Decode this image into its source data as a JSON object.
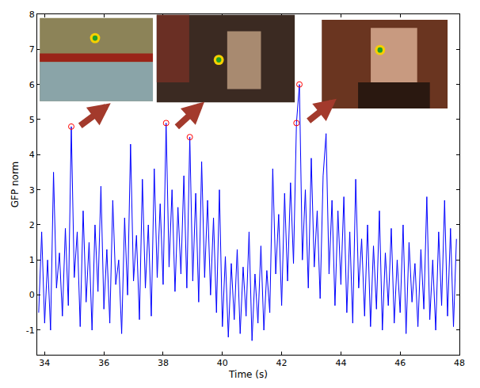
{
  "chart_data": {
    "type": "line",
    "x_label": "Time (s)",
    "y_label": "GFP norm",
    "x": [
      33.8,
      33.9,
      34.0,
      34.1,
      34.2,
      34.3,
      34.4,
      34.5,
      34.6,
      34.7,
      34.8,
      34.9,
      35.0,
      35.1,
      35.2,
      35.3,
      35.4,
      35.5,
      35.6,
      35.7,
      35.8,
      35.9,
      36.0,
      36.1,
      36.2,
      36.3,
      36.4,
      36.5,
      36.6,
      36.7,
      36.8,
      36.9,
      37.0,
      37.1,
      37.2,
      37.3,
      37.4,
      37.5,
      37.6,
      37.7,
      37.8,
      37.9,
      38.0,
      38.1,
      38.2,
      38.3,
      38.4,
      38.5,
      38.6,
      38.7,
      38.8,
      38.9,
      39.0,
      39.1,
      39.2,
      39.3,
      39.4,
      39.5,
      39.6,
      39.7,
      39.8,
      39.9,
      40.0,
      40.1,
      40.2,
      40.3,
      40.4,
      40.5,
      40.6,
      40.7,
      40.8,
      40.9,
      41.0,
      41.1,
      41.2,
      41.3,
      41.4,
      41.5,
      41.6,
      41.7,
      41.8,
      41.9,
      42.0,
      42.1,
      42.2,
      42.3,
      42.4,
      42.5,
      42.6,
      42.7,
      42.8,
      42.9,
      43.0,
      43.1,
      43.2,
      43.3,
      43.4,
      43.5,
      43.6,
      43.7,
      43.8,
      43.9,
      44.0,
      44.1,
      44.2,
      44.3,
      44.4,
      44.5,
      44.6,
      44.7,
      44.8,
      44.9,
      45.0,
      45.1,
      45.2,
      45.3,
      45.4,
      45.5,
      45.6,
      45.7,
      45.8,
      45.9,
      46.0,
      46.1,
      46.2,
      46.3,
      46.4,
      46.5,
      46.6,
      46.7,
      46.8,
      46.9,
      47.0,
      47.1,
      47.2,
      47.3,
      47.4,
      47.5,
      47.6,
      47.7,
      47.8,
      47.9
    ],
    "series": [
      {
        "type": "line",
        "color": "#0000ff",
        "line_style": "solid",
        "values": [
          -0.5,
          1.8,
          -0.8,
          1.0,
          -1.0,
          3.5,
          0.2,
          1.2,
          -0.6,
          1.9,
          -0.3,
          4.8,
          0.5,
          1.8,
          -0.9,
          2.4,
          -0.2,
          1.5,
          -1.0,
          2.0,
          0.1,
          3.1,
          -0.4,
          1.3,
          -0.8,
          2.7,
          0.3,
          1.0,
          -1.1,
          2.2,
          0.0,
          4.3,
          0.4,
          1.7,
          -0.7,
          3.3,
          0.2,
          2.0,
          -0.6,
          3.6,
          0.5,
          2.6,
          0.3,
          4.9,
          0.8,
          3.0,
          0.1,
          2.5,
          0.6,
          3.4,
          0.2,
          4.5,
          0.4,
          2.9,
          -0.2,
          3.8,
          0.5,
          2.7,
          0.0,
          2.2,
          -0.5,
          3.0,
          -0.9,
          1.1,
          -1.2,
          0.9,
          -0.7,
          1.3,
          -1.1,
          0.8,
          -0.6,
          1.8,
          -1.3,
          0.6,
          -0.8,
          1.4,
          -1.0,
          0.7,
          -0.5,
          3.6,
          0.6,
          2.3,
          -0.3,
          2.9,
          0.4,
          3.2,
          0.9,
          4.9,
          6.0,
          1.0,
          3.0,
          0.2,
          3.9,
          0.8,
          2.4,
          -0.1,
          3.4,
          4.6,
          0.6,
          2.7,
          -0.3,
          2.4,
          0.3,
          2.8,
          -0.5,
          1.8,
          -0.8,
          3.3,
          0.2,
          1.6,
          -0.6,
          2.0,
          -0.9,
          1.4,
          -0.4,
          2.4,
          -1.0,
          1.2,
          -0.3,
          1.9,
          -0.8,
          1.0,
          -0.5,
          2.0,
          -1.1,
          1.5,
          -0.2,
          0.9,
          -0.9,
          1.3,
          -0.4,
          2.8,
          -0.7,
          1.0,
          -1.0,
          1.8,
          -0.3,
          2.7,
          -0.6,
          1.9,
          -0.9,
          1.6
        ]
      },
      {
        "type": "scatter",
        "color": "#ff0000",
        "marker": "circle-open",
        "x": [
          34.9,
          38.1,
          38.9,
          42.5,
          42.6
        ],
        "values": [
          4.8,
          4.9,
          4.5,
          4.9,
          6.0
        ]
      }
    ],
    "xlim": [
      33.75,
      48
    ],
    "xticks": [
      34,
      36,
      38,
      40,
      42,
      44,
      46,
      48
    ],
    "ylim": [
      -1.7,
      8
    ],
    "yticks": [
      -1,
      0,
      1,
      2,
      3,
      4,
      5,
      6,
      7,
      8
    ],
    "grid": false
  }
}
